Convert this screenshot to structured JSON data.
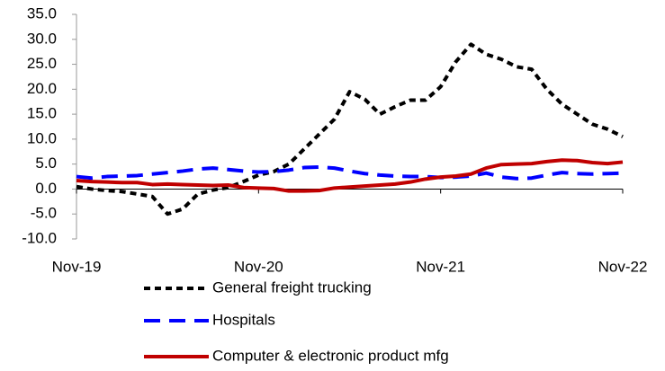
{
  "chart_data": {
    "type": "line",
    "categories": [
      "Nov-19",
      null,
      null,
      null,
      null,
      null,
      null,
      null,
      null,
      null,
      null,
      null,
      "Nov-20",
      null,
      null,
      null,
      null,
      null,
      null,
      null,
      null,
      null,
      null,
      null,
      "Nov-21",
      null,
      null,
      null,
      null,
      null,
      null,
      null,
      null,
      null,
      null,
      null,
      "Nov-22"
    ],
    "series": [
      {
        "name": "General freight trucking",
        "color": "#000000",
        "values": [
          0.5,
          0,
          -0.3,
          -0.5,
          -1,
          -1.5,
          -5,
          -4,
          -1,
          -0.2,
          0.3,
          1.5,
          2.8,
          3.5,
          5,
          8,
          11,
          14,
          19.5,
          18,
          15,
          16.5,
          17.8,
          17.8,
          20.5,
          25.5,
          29,
          27,
          26,
          24.5,
          24,
          20,
          17,
          15,
          13,
          12,
          10.5
        ]
      },
      {
        "name": "Hospitals",
        "color": "#0000ff",
        "values": [
          2.5,
          2.2,
          2.5,
          2.6,
          2.7,
          3,
          3.3,
          3.6,
          4,
          4.2,
          3.9,
          3.6,
          3.4,
          3.5,
          3.8,
          4.3,
          4.4,
          4.2,
          3.6,
          3.1,
          2.8,
          2.6,
          2.5,
          2.5,
          2.3,
          2.4,
          2.6,
          3.2,
          2.4,
          2.1,
          2.2,
          2.8,
          3.3,
          3.1,
          3.0,
          3.1,
          3.2
        ]
      },
      {
        "name": "Computer & electronic product mfg",
        "color": "#c00000",
        "values": [
          1.7,
          1.5,
          1.4,
          1.3,
          1.3,
          0.9,
          1.0,
          0.9,
          0.8,
          0.7,
          0.8,
          0.3,
          0.2,
          0.1,
          -0.4,
          -0.4,
          -0.3,
          0.2,
          0.4,
          0.6,
          0.8,
          1.0,
          1.4,
          2.0,
          2.4,
          2.6,
          3.0,
          4.2,
          4.9,
          5.0,
          5.1,
          5.5,
          5.8,
          5.7,
          5.3,
          5.1,
          5.4
        ]
      }
    ],
    "ylim": [
      -10,
      35
    ],
    "yticks": [
      {
        "value": -10,
        "label": "-10.0"
      },
      {
        "value": -5,
        "label": "-5.0"
      },
      {
        "value": 0,
        "label": "0.0"
      },
      {
        "value": 5,
        "label": "5.0"
      },
      {
        "value": 10,
        "label": "10.0"
      },
      {
        "value": 15,
        "label": "15.0"
      },
      {
        "value": 20,
        "label": "20.0"
      },
      {
        "value": 25,
        "label": "25.0"
      },
      {
        "value": 30,
        "label": "30.0"
      },
      {
        "value": 35,
        "label": "35.0"
      }
    ],
    "grid": false
  }
}
